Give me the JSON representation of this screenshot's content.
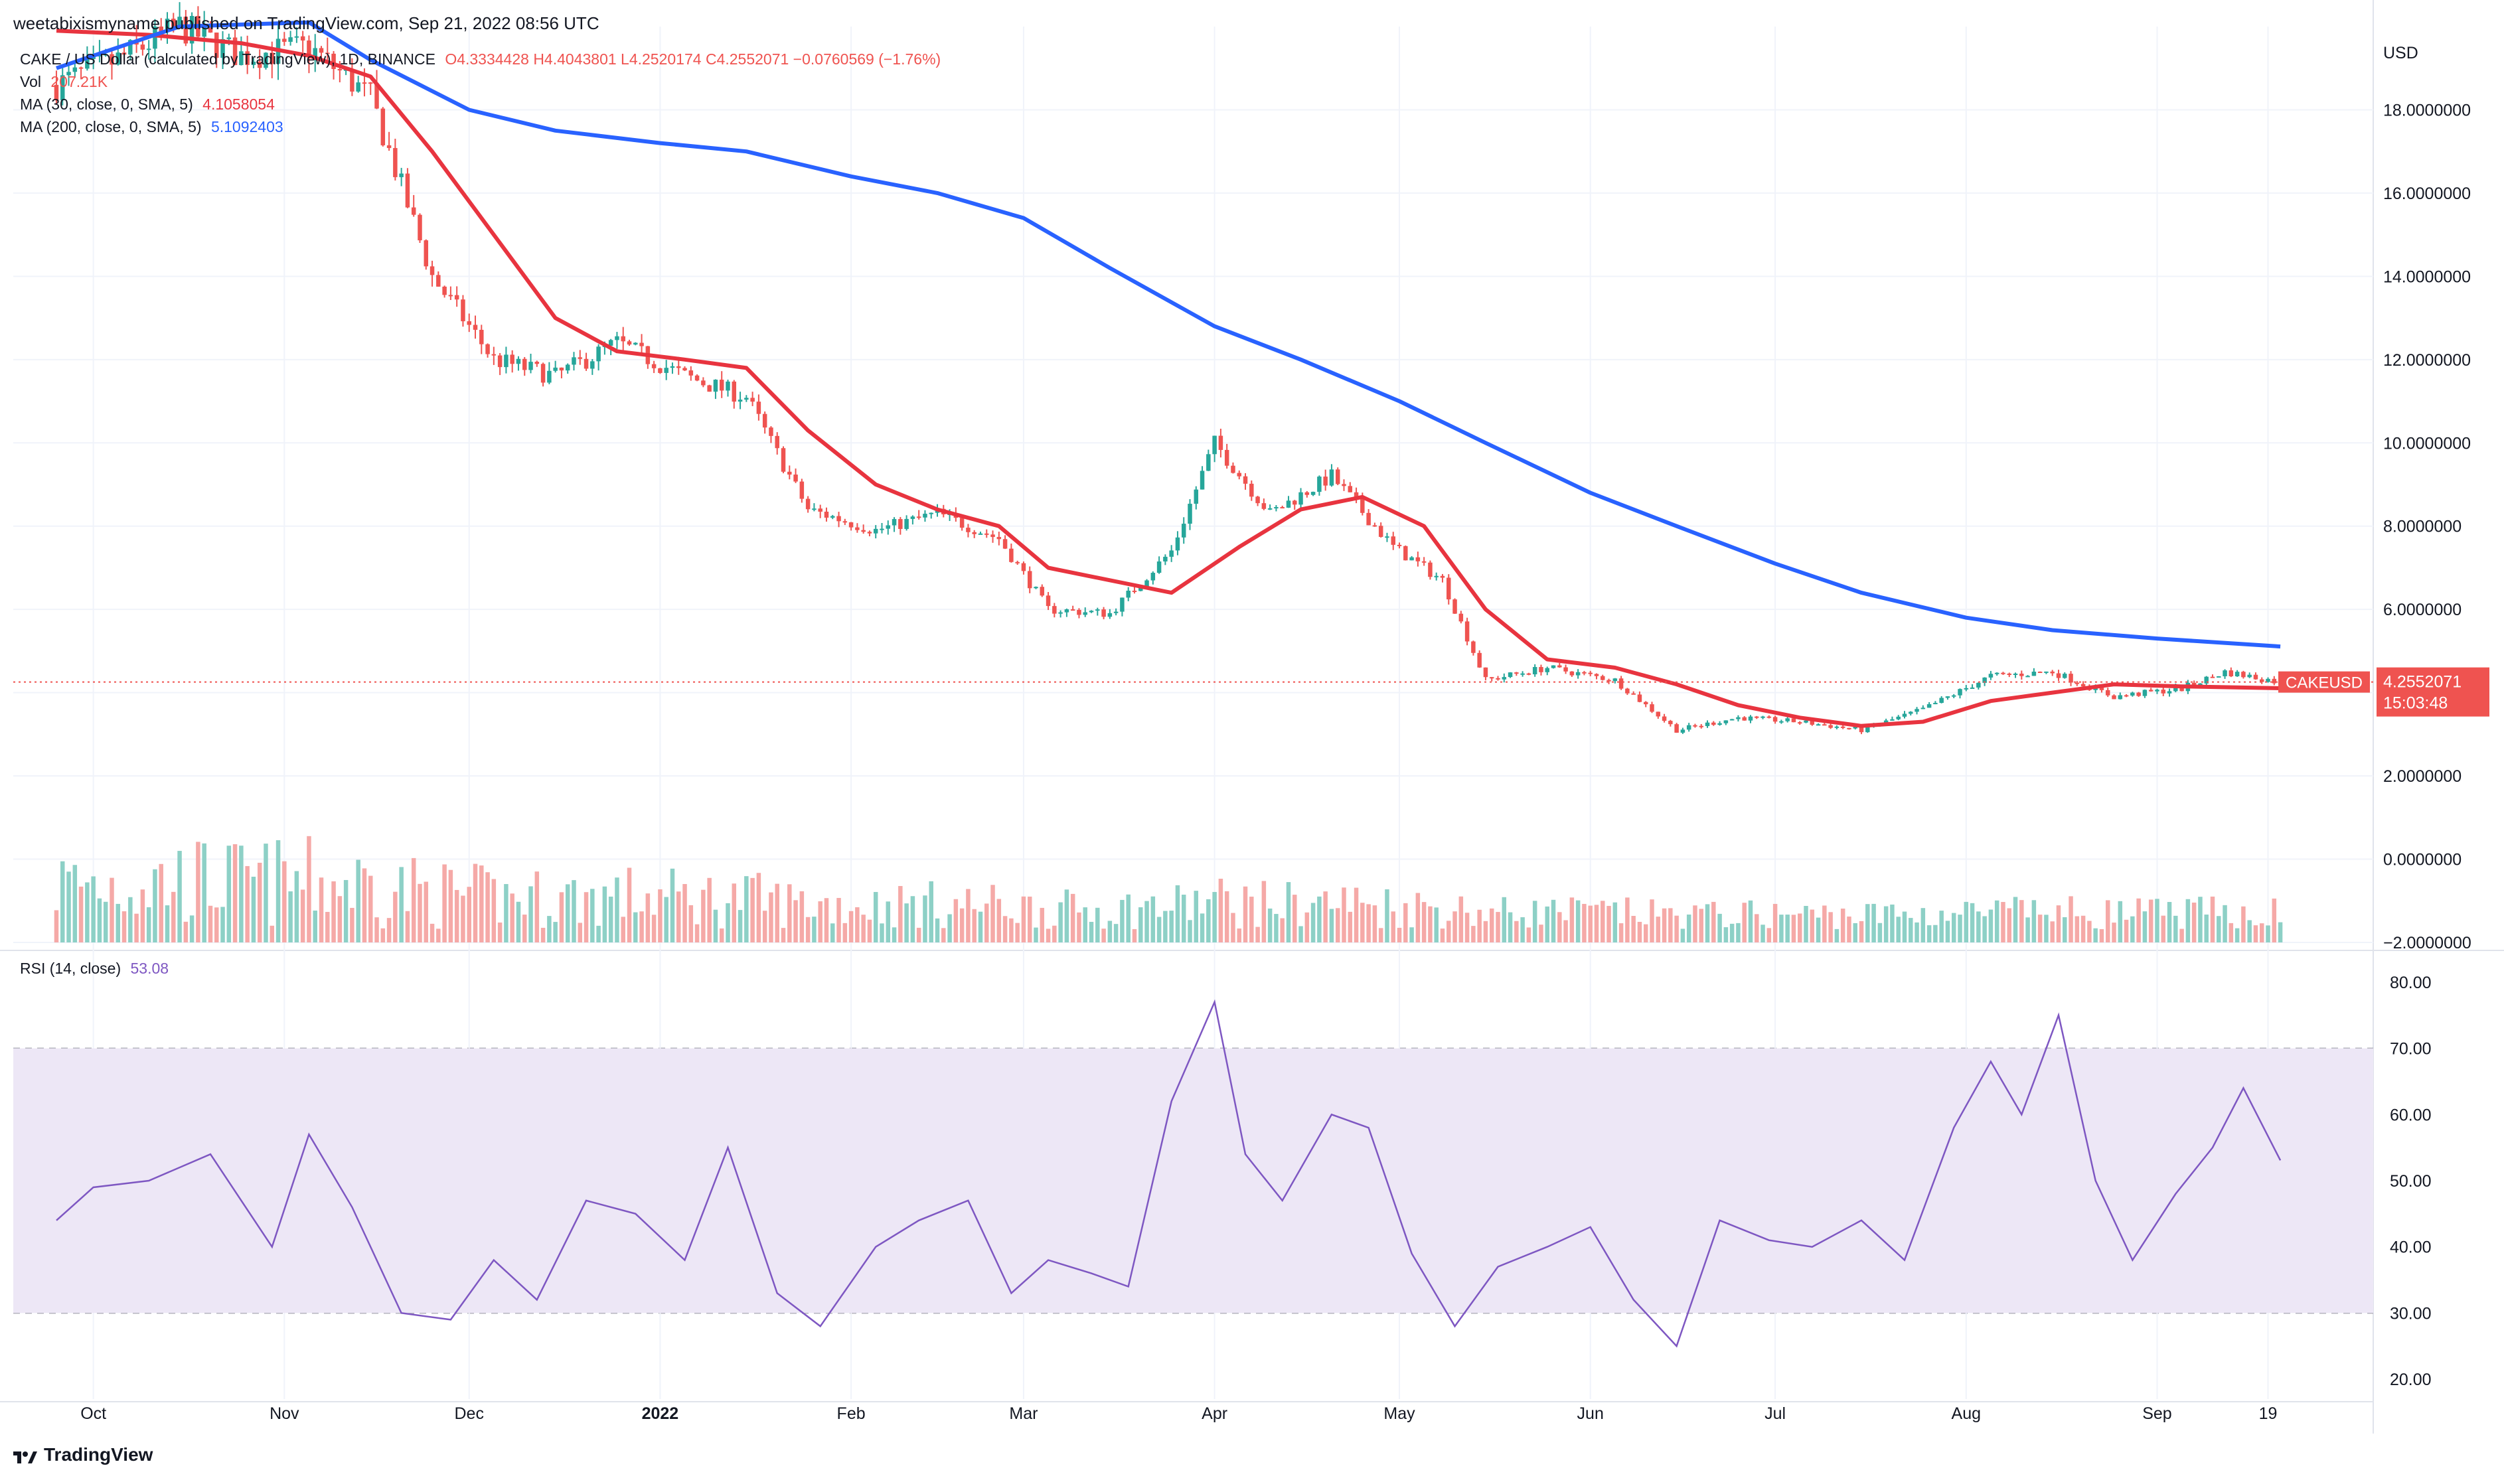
{
  "header": {
    "published": "weetabixismyname published on TradingView.com, Sep 21, 2022 08:56 UTC"
  },
  "legend": {
    "symbol": "CAKE / US Dollar (calculated by TradingView), 1D, BINANCE",
    "ohlc": "O4.3334428 H4.4043801 L4.2520174 C4.2552071 −0.0760569 (−1.76%)",
    "vol_label": "Vol",
    "vol_value": "207.21K",
    "ma30_label": "MA (30, close, 0, SMA, 5)",
    "ma30_value": "4.1058054",
    "ma200_label": "MA (200, close, 0, SMA, 5)",
    "ma200_value": "5.1092403",
    "rsi_label": "RSI (14, close)",
    "rsi_value": "53.08"
  },
  "price_badge": {
    "symbol": "CAKEUSD",
    "price": "4.2552071",
    "countdown": "15:03:48"
  },
  "currency": "USD",
  "branding": "TradingView",
  "colors": {
    "up": "#26a69a",
    "down": "#ef5350",
    "ma30": "#e8343f",
    "ma200": "#2962ff",
    "rsi": "#7e57c2",
    "rsi_band": "#ede7f6",
    "vol_up": "#8dd0c6",
    "vol_down": "#f5a9a7"
  },
  "chart_data": [
    {
      "type": "candlestick",
      "title": "CAKE / US Dollar (calculated by TradingView), 1D, BINANCE",
      "y_axis_ticks": [
        "18.0000000",
        "16.0000000",
        "14.0000000",
        "12.0000000",
        "10.0000000",
        "8.0000000",
        "6.0000000",
        "4.0000000",
        "2.0000000",
        "0.0000000",
        "−2.0000000"
      ],
      "ylim": [
        -2,
        20
      ],
      "x_axis_ticks": [
        "Oct",
        "Nov",
        "Dec",
        "2022",
        "Feb",
        "Mar",
        "Apr",
        "May",
        "Jun",
        "Jul",
        "Aug",
        "Sep",
        "19"
      ],
      "close_series_approx": {
        "dates": [
          "2021-09-25",
          "2021-10-05",
          "2021-10-15",
          "2021-10-25",
          "2021-11-05",
          "2021-11-15",
          "2021-11-25",
          "2021-12-05",
          "2021-12-15",
          "2021-12-25",
          "2022-01-05",
          "2022-01-15",
          "2022-01-25",
          "2022-02-05",
          "2022-02-15",
          "2022-02-25",
          "2022-03-05",
          "2022-03-15",
          "2022-03-25",
          "2022-04-01",
          "2022-04-10",
          "2022-04-20",
          "2022-04-30",
          "2022-05-08",
          "2022-05-15",
          "2022-05-25",
          "2022-06-05",
          "2022-06-15",
          "2022-06-25",
          "2022-07-05",
          "2022-07-15",
          "2022-07-25",
          "2022-08-05",
          "2022-08-15",
          "2022-08-25",
          "2022-09-05",
          "2022-09-12",
          "2022-09-21"
        ],
        "values": [
          18.6,
          19.2,
          20.0,
          19.3,
          19.5,
          18.3,
          14.0,
          12.0,
          11.6,
          12.4,
          11.6,
          11.1,
          8.4,
          7.9,
          8.3,
          7.7,
          6.0,
          5.9,
          7.4,
          10.0,
          8.3,
          9.2,
          7.5,
          6.7,
          4.3,
          4.6,
          4.3,
          3.1,
          3.4,
          3.3,
          3.1,
          3.6,
          4.4,
          4.5,
          3.9,
          4.1,
          4.5,
          4.2552071
        ]
      },
      "series": [
        {
          "name": "MA (30, close, 0, SMA, 5)",
          "x": [
            "2021-09-25",
            "2021-10-10",
            "2021-10-25",
            "2021-11-05",
            "2021-11-15",
            "2021-11-25",
            "2021-12-05",
            "2021-12-15",
            "2021-12-25",
            "2022-01-05",
            "2022-01-15",
            "2022-01-25",
            "2022-02-05",
            "2022-02-15",
            "2022-02-25",
            "2022-03-05",
            "2022-03-15",
            "2022-03-25",
            "2022-04-05",
            "2022-04-15",
            "2022-04-25",
            "2022-05-05",
            "2022-05-15",
            "2022-05-25",
            "2022-06-05",
            "2022-06-15",
            "2022-06-25",
            "2022-07-05",
            "2022-07-15",
            "2022-07-25",
            "2022-08-05",
            "2022-08-15",
            "2022-08-25",
            "2022-09-05",
            "2022-09-21"
          ],
          "values": [
            19.9,
            19.8,
            19.6,
            19.3,
            18.8,
            17.0,
            15.0,
            13.0,
            12.2,
            12.0,
            11.8,
            10.3,
            9.0,
            8.4,
            8.0,
            7.0,
            6.7,
            6.4,
            7.5,
            8.4,
            8.7,
            8.0,
            6.0,
            4.8,
            4.6,
            4.2,
            3.7,
            3.4,
            3.2,
            3.3,
            3.8,
            4.0,
            4.2,
            4.15,
            4.1058054
          ]
        },
        {
          "name": "MA (200, close, 0, SMA, 5)",
          "x": [
            "2021-09-25",
            "2021-10-15",
            "2021-11-05",
            "2021-11-15",
            "2021-12-01",
            "2021-12-15",
            "2022-01-01",
            "2022-01-15",
            "2022-02-01",
            "2022-02-15",
            "2022-03-01",
            "2022-03-15",
            "2022-04-01",
            "2022-04-15",
            "2022-05-01",
            "2022-05-15",
            "2022-06-01",
            "2022-06-15",
            "2022-07-01",
            "2022-07-15",
            "2022-08-01",
            "2022-08-15",
            "2022-09-01",
            "2022-09-21"
          ],
          "values": [
            19.0,
            20.0,
            20.1,
            19.2,
            18.0,
            17.5,
            17.2,
            17.0,
            16.4,
            16.0,
            15.4,
            14.2,
            12.8,
            12.0,
            11.0,
            10.0,
            8.8,
            8.0,
            7.1,
            6.4,
            5.8,
            5.5,
            5.3,
            5.1092403
          ]
        }
      ]
    },
    {
      "type": "line",
      "title": "RSI (14, close)",
      "y_axis_ticks": [
        "80.00",
        "70.00",
        "60.00",
        "50.00",
        "40.00",
        "30.00",
        "20.00"
      ],
      "ylim": [
        17,
        84
      ],
      "band": [
        30,
        70
      ],
      "series": [
        {
          "name": "RSI (14, close)",
          "x": [
            "2021-09-25",
            "2021-10-01",
            "2021-10-10",
            "2021-10-20",
            "2021-10-30",
            "2021-11-05",
            "2021-11-12",
            "2021-11-20",
            "2021-11-28",
            "2021-12-05",
            "2021-12-12",
            "2021-12-20",
            "2021-12-28",
            "2022-01-05",
            "2022-01-12",
            "2022-01-20",
            "2022-01-27",
            "2022-02-05",
            "2022-02-12",
            "2022-02-20",
            "2022-02-27",
            "2022-03-05",
            "2022-03-12",
            "2022-03-18",
            "2022-03-25",
            "2022-04-01",
            "2022-04-06",
            "2022-04-12",
            "2022-04-20",
            "2022-04-26",
            "2022-05-03",
            "2022-05-10",
            "2022-05-17",
            "2022-05-25",
            "2022-06-01",
            "2022-06-08",
            "2022-06-15",
            "2022-06-22",
            "2022-06-30",
            "2022-07-07",
            "2022-07-15",
            "2022-07-22",
            "2022-07-30",
            "2022-08-05",
            "2022-08-10",
            "2022-08-16",
            "2022-08-22",
            "2022-08-28",
            "2022-09-04",
            "2022-09-10",
            "2022-09-15",
            "2022-09-21"
          ],
          "values": [
            44,
            49,
            50,
            54,
            40,
            57,
            46,
            30,
            29,
            38,
            32,
            47,
            45,
            38,
            55,
            33,
            28,
            40,
            44,
            47,
            33,
            38,
            36,
            34,
            62,
            77,
            54,
            47,
            60,
            58,
            39,
            28,
            37,
            40,
            43,
            32,
            25,
            44,
            41,
            40,
            44,
            38,
            58,
            68,
            60,
            75,
            50,
            38,
            48,
            55,
            64,
            53.08
          ]
        }
      ]
    }
  ]
}
